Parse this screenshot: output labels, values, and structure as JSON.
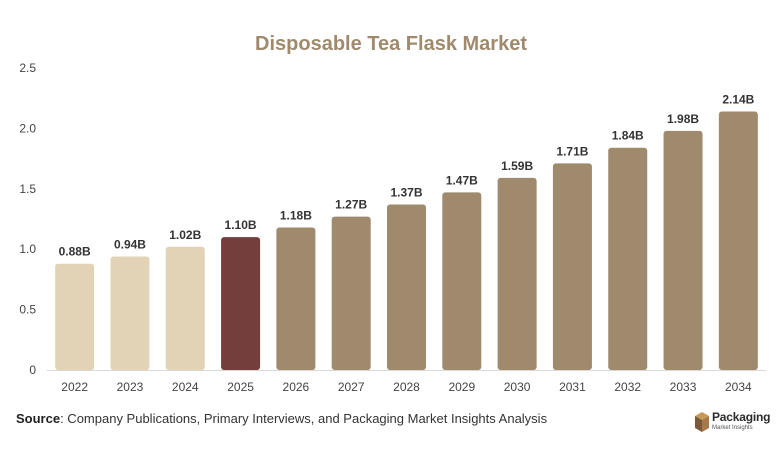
{
  "chart_data": {
    "type": "bar",
    "title": "Disposable Tea Flask Market",
    "categories": [
      "2022",
      "2023",
      "2024",
      "2025",
      "2026",
      "2027",
      "2028",
      "2029",
      "2030",
      "2031",
      "2032",
      "2033",
      "2034"
    ],
    "values": [
      0.88,
      0.94,
      1.02,
      1.1,
      1.18,
      1.27,
      1.37,
      1.47,
      1.59,
      1.71,
      1.84,
      1.98,
      2.14
    ],
    "data_labels": [
      "0.88B",
      "0.94B",
      "1.02B",
      "1.10B",
      "1.18B",
      "1.27B",
      "1.37B",
      "1.47B",
      "1.59B",
      "1.71B",
      "1.84B",
      "1.98B",
      "2.14B"
    ],
    "ylim": [
      0,
      2.5
    ],
    "yticks": [
      "0",
      "0.5",
      "1.0",
      "1.5",
      "2.0",
      "2.5"
    ],
    "ytick_values": [
      0,
      0.5,
      1.0,
      1.5,
      2.0,
      2.5
    ],
    "grid": false,
    "colors": {
      "historical": "#e3d3b6",
      "current": "#733e3c",
      "forecast": "#a08a6e",
      "title": "#a08a6e"
    },
    "bar_groups": [
      "historical",
      "historical",
      "historical",
      "current",
      "forecast",
      "forecast",
      "forecast",
      "forecast",
      "forecast",
      "forecast",
      "forecast",
      "forecast",
      "forecast"
    ]
  },
  "footer": {
    "source_label": "Source",
    "source_text": ": Company Publications, Primary Interviews, and Packaging Market Insights Analysis"
  },
  "logo": {
    "name": "Packaging",
    "sub": "Market Insights",
    "icon": "box-icon"
  }
}
